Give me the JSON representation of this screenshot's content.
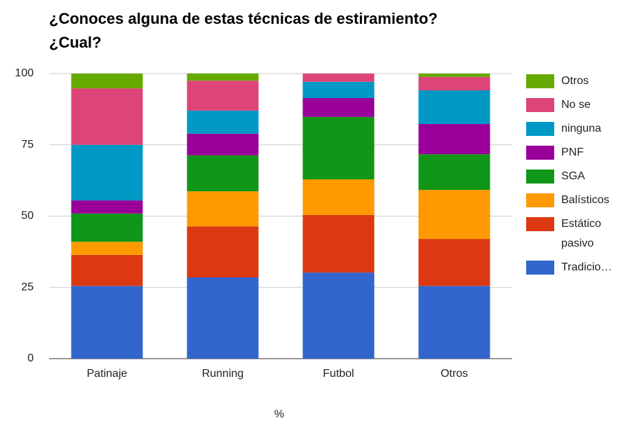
{
  "chart_data": {
    "type": "stacked_bar",
    "title": "¿Conoces alguna de estas técnicas de estiramiento? ¿Cual?",
    "x_label": "%",
    "categories": [
      "Patinaje",
      "Running",
      "Futbol",
      "Otros"
    ],
    "series": [
      {
        "name": "Tradicio…",
        "color": "#3366cc",
        "values": [
          25.5,
          28.5,
          30.2,
          25.5
        ]
      },
      {
        "name": "Estático pasivo",
        "color": "#dc3912",
        "values": [
          10.9,
          17.9,
          20.2,
          16.5
        ]
      },
      {
        "name": "Balísticos",
        "color": "#ff9900",
        "values": [
          4.6,
          12.3,
          12.5,
          17.2
        ]
      },
      {
        "name": "SGA",
        "color": "#109618",
        "values": [
          9.9,
          12.6,
          21.9,
          12.5
        ]
      },
      {
        "name": "PNF",
        "color": "#990099",
        "values": [
          4.6,
          7.6,
          6.6,
          10.6
        ]
      },
      {
        "name": "ninguna",
        "color": "#0099c6",
        "values": [
          19.5,
          8.1,
          5.7,
          11.8
        ]
      },
      {
        "name": "No se",
        "color": "#dd4477",
        "values": [
          19.8,
          10.5,
          2.9,
          4.7
        ]
      },
      {
        "name": "Otros",
        "color": "#66aa00",
        "values": [
          5.2,
          2.5,
          0,
          1.2
        ]
      }
    ],
    "ylim": [
      0,
      100
    ],
    "yticks": [
      0,
      25,
      50,
      75,
      100
    ],
    "grid": true,
    "legend": "right"
  }
}
